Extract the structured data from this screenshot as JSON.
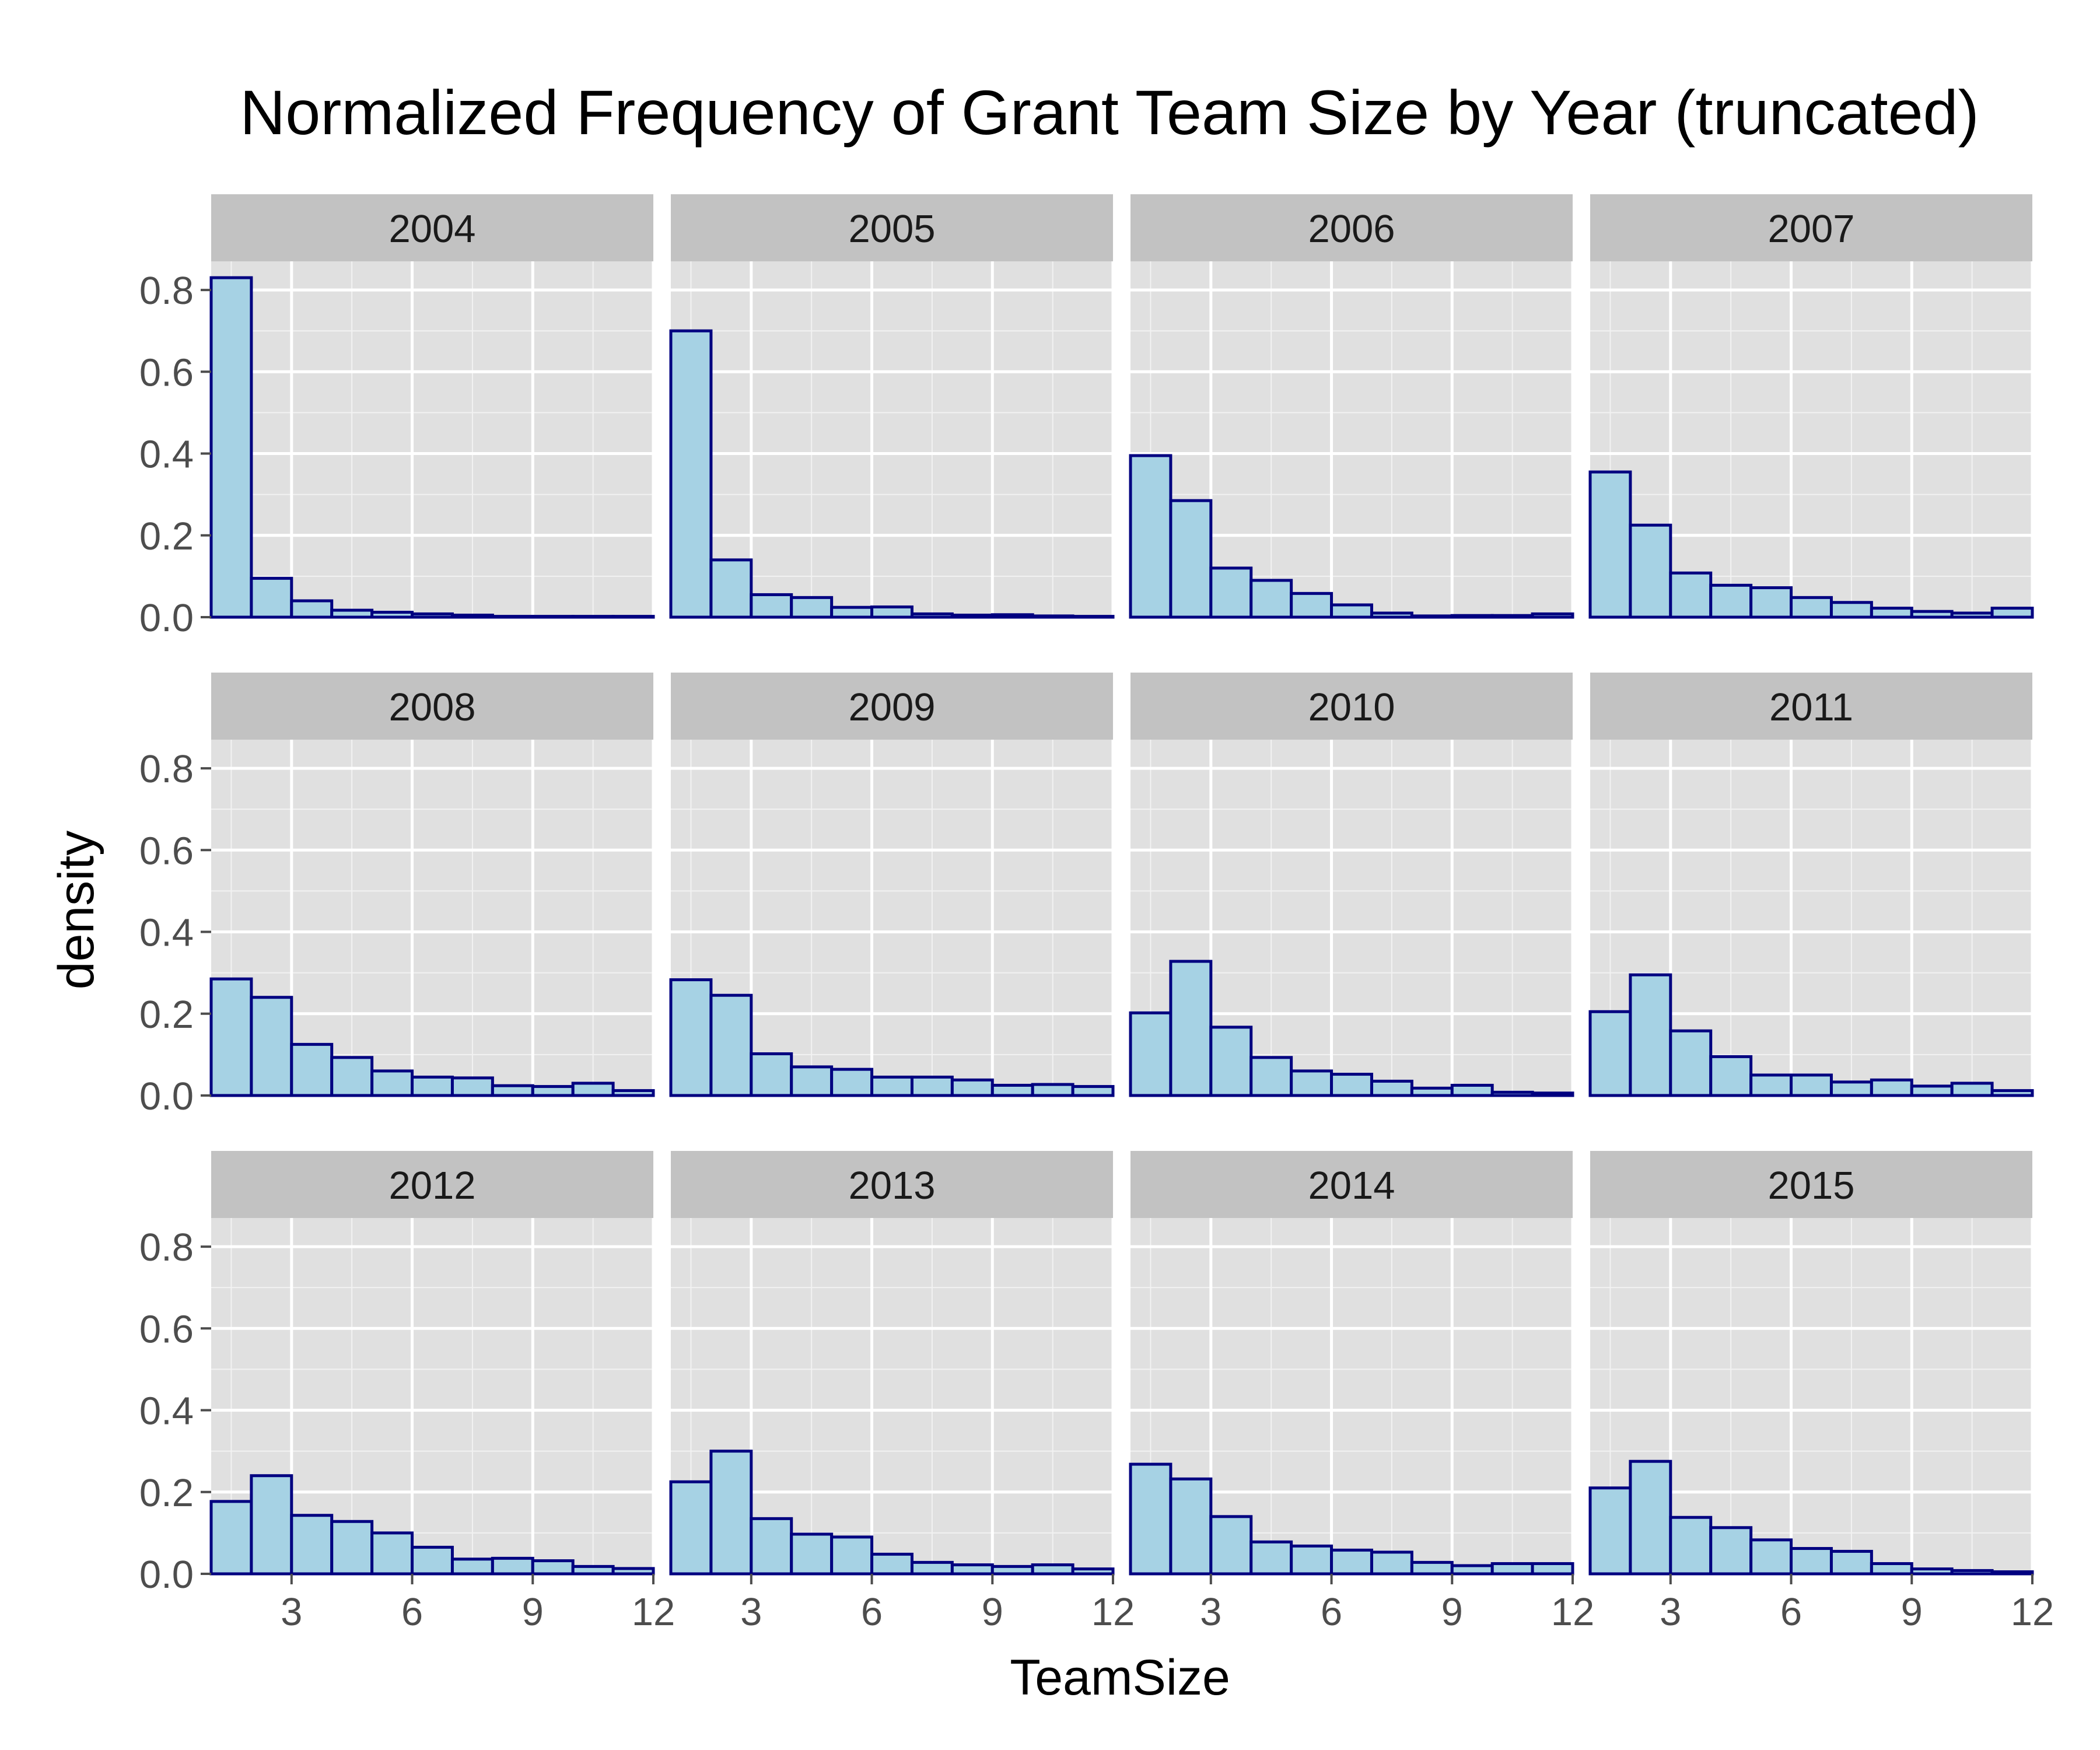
{
  "colors": {
    "panel_background": "#E0E0E0",
    "major_grid": "#FFFFFF",
    "minor_grid": "#F2F2F2",
    "strip_background": "#C2C2C2",
    "bar_fill": "#A6D2E4",
    "bar_stroke": "#000080",
    "tick_label": "#4D4D4D",
    "text": "#000000"
  },
  "chart_data": {
    "type": "bar",
    "subtype": "faceted-histogram",
    "title": "Normalized Frequency of Grant Team Size by Year (truncated)",
    "xlabel": "TeamSize",
    "ylabel": "density",
    "xlim": [
      1,
      12
    ],
    "ylim": [
      0,
      0.87
    ],
    "x_ticks": [
      "3",
      "6",
      "9",
      "12"
    ],
    "y_ticks": [
      "0.0",
      "0.2",
      "0.4",
      "0.6",
      "0.8"
    ],
    "grid": true,
    "legend": "none",
    "bins": [
      [
        1,
        2
      ],
      [
        2,
        3
      ],
      [
        3,
        4
      ],
      [
        4,
        5
      ],
      [
        5,
        6
      ],
      [
        6,
        7
      ],
      [
        7,
        8
      ],
      [
        8,
        9
      ],
      [
        9,
        10
      ],
      [
        10,
        11
      ],
      [
        11,
        12
      ]
    ],
    "panels": [
      {
        "year": "2004",
        "values": [
          0.83,
          0.095,
          0.04,
          0.017,
          0.012,
          0.008,
          0.005,
          0.002,
          0.002,
          0.002,
          0.002
        ]
      },
      {
        "year": "2005",
        "values": [
          0.7,
          0.14,
          0.055,
          0.048,
          0.024,
          0.025,
          0.008,
          0.005,
          0.006,
          0.003,
          0.002
        ]
      },
      {
        "year": "2006",
        "values": [
          0.395,
          0.285,
          0.12,
          0.09,
          0.058,
          0.03,
          0.01,
          0.003,
          0.004,
          0.004,
          0.008
        ]
      },
      {
        "year": "2007",
        "values": [
          0.355,
          0.225,
          0.108,
          0.078,
          0.072,
          0.048,
          0.036,
          0.022,
          0.014,
          0.01,
          0.022
        ]
      },
      {
        "year": "2008",
        "values": [
          0.285,
          0.24,
          0.125,
          0.093,
          0.06,
          0.045,
          0.043,
          0.024,
          0.022,
          0.03,
          0.012
        ]
      },
      {
        "year": "2009",
        "values": [
          0.283,
          0.245,
          0.102,
          0.07,
          0.064,
          0.045,
          0.045,
          0.038,
          0.025,
          0.027,
          0.022
        ]
      },
      {
        "year": "2010",
        "values": [
          0.202,
          0.328,
          0.167,
          0.093,
          0.06,
          0.052,
          0.035,
          0.018,
          0.025,
          0.008,
          0.006
        ]
      },
      {
        "year": "2011",
        "values": [
          0.205,
          0.295,
          0.158,
          0.095,
          0.05,
          0.05,
          0.033,
          0.038,
          0.023,
          0.03,
          0.012
        ]
      },
      {
        "year": "2012",
        "values": [
          0.177,
          0.24,
          0.143,
          0.128,
          0.1,
          0.065,
          0.036,
          0.038,
          0.032,
          0.018,
          0.013
        ]
      },
      {
        "year": "2013",
        "values": [
          0.225,
          0.3,
          0.135,
          0.097,
          0.09,
          0.048,
          0.028,
          0.022,
          0.018,
          0.022,
          0.012
        ]
      },
      {
        "year": "2014",
        "values": [
          0.268,
          0.232,
          0.14,
          0.078,
          0.068,
          0.058,
          0.053,
          0.028,
          0.02,
          0.025,
          0.025
        ]
      },
      {
        "year": "2015",
        "values": [
          0.21,
          0.275,
          0.138,
          0.113,
          0.083,
          0.062,
          0.055,
          0.025,
          0.012,
          0.008,
          0.005
        ]
      }
    ]
  }
}
